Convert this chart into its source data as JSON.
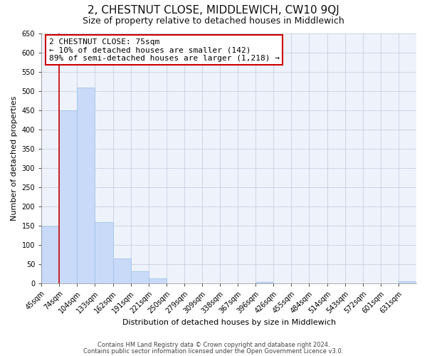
{
  "title": "2, CHESTNUT CLOSE, MIDDLEWICH, CW10 9QJ",
  "subtitle": "Size of property relative to detached houses in Middlewich",
  "xlabel": "Distribution of detached houses by size in Middlewich",
  "ylabel": "Number of detached properties",
  "categories": [
    "45sqm",
    "74sqm",
    "104sqm",
    "133sqm",
    "162sqm",
    "191sqm",
    "221sqm",
    "250sqm",
    "279sqm",
    "309sqm",
    "338sqm",
    "367sqm",
    "396sqm",
    "426sqm",
    "455sqm",
    "484sqm",
    "514sqm",
    "543sqm",
    "572sqm",
    "601sqm",
    "631sqm"
  ],
  "values": [
    147,
    450,
    508,
    158,
    65,
    32,
    12,
    0,
    0,
    0,
    0,
    0,
    4,
    0,
    0,
    0,
    0,
    0,
    0,
    0,
    5
  ],
  "bar_color": "#c9daf8",
  "bar_edge_color": "#9fc5e8",
  "ylim": [
    0,
    650
  ],
  "yticks": [
    0,
    50,
    100,
    150,
    200,
    250,
    300,
    350,
    400,
    450,
    500,
    550,
    600,
    650
  ],
  "annotation_title": "2 CHESTNUT CLOSE: 75sqm",
  "annotation_line1": "← 10% of detached houses are smaller (142)",
  "annotation_line2": "89% of semi-detached houses are larger (1,218) →",
  "annotation_box_facecolor": "#ffffff",
  "annotation_box_edgecolor": "#cc0000",
  "red_line_color": "#cc0000",
  "footer_line1": "Contains HM Land Registry data © Crown copyright and database right 2024.",
  "footer_line2": "Contains public sector information licensed under the Open Government Licence v3.0.",
  "background_color": "#ffffff",
  "plot_bg_color": "#eef2fb",
  "grid_color": "#c0c8dc",
  "title_fontsize": 11,
  "subtitle_fontsize": 9,
  "annotation_fontsize": 8,
  "tick_fontsize": 7,
  "axis_label_fontsize": 8
}
